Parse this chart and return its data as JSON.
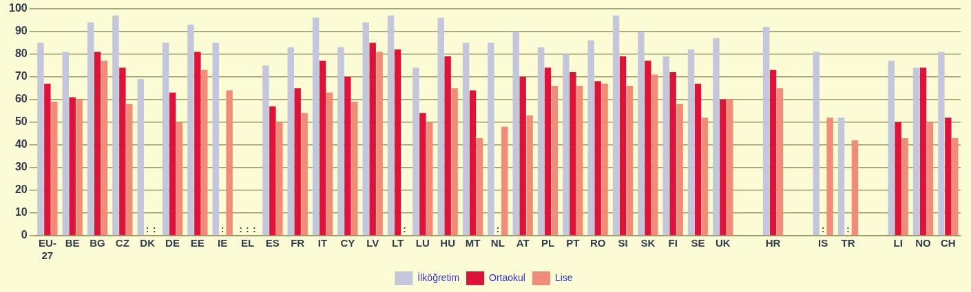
{
  "chart_data": {
    "type": "bar",
    "categories": [
      "EU-27",
      "BE",
      "BG",
      "CZ",
      "DK",
      "DE",
      "EE",
      "IE",
      "EL",
      "ES",
      "FR",
      "IT",
      "CY",
      "LV",
      "LT",
      "LU",
      "HU",
      "MT",
      "NL",
      "AT",
      "PL",
      "PT",
      "RO",
      "SI",
      "SK",
      "FI",
      "SE",
      "UK",
      null,
      "HR",
      null,
      "IS",
      "TR",
      null,
      "LI",
      "NO",
      "CH"
    ],
    "series": [
      {
        "name": "İlköğretim",
        "color": "#c4c6dc",
        "values": [
          85,
          81,
          94,
          97,
          69,
          85,
          93,
          85,
          null,
          75,
          83,
          96,
          83,
          94,
          97,
          74,
          96,
          85,
          85,
          90,
          83,
          80,
          86,
          97,
          90,
          79,
          82,
          87,
          null,
          92,
          null,
          81,
          52,
          null,
          77,
          74,
          81
        ],
        "value_labels": [
          null,
          null,
          null,
          null,
          null,
          null,
          null,
          null,
          ":",
          null,
          null,
          null,
          null,
          null,
          null,
          null,
          null,
          null,
          null,
          null,
          null,
          null,
          null,
          null,
          null,
          null,
          null,
          null,
          null,
          null,
          null,
          null,
          null,
          null,
          null,
          null,
          null
        ]
      },
      {
        "name": "Ortaokul",
        "color": "#dc143c",
        "values": [
          67,
          61,
          81,
          74,
          null,
          63,
          81,
          null,
          null,
          57,
          65,
          77,
          70,
          85,
          82,
          54,
          79,
          64,
          null,
          70,
          74,
          72,
          68,
          79,
          77,
          72,
          67,
          60,
          null,
          73,
          null,
          null,
          null,
          null,
          50,
          74,
          52
        ],
        "value_labels": [
          null,
          null,
          null,
          null,
          ":",
          null,
          null,
          ":",
          ":",
          null,
          null,
          null,
          null,
          null,
          null,
          null,
          null,
          null,
          ":",
          null,
          null,
          null,
          null,
          null,
          null,
          null,
          null,
          null,
          null,
          null,
          null,
          ":",
          ":",
          null,
          null,
          null,
          null
        ]
      },
      {
        "name": "Lise",
        "color": "#f08c78",
        "values": [
          59,
          60,
          77,
          58,
          null,
          50,
          73,
          64,
          null,
          50,
          54,
          63,
          59,
          81,
          null,
          50,
          65,
          43,
          48,
          53,
          66,
          66,
          67,
          66,
          71,
          58,
          52,
          60,
          null,
          65,
          null,
          52,
          42,
          null,
          43,
          50,
          43
        ],
        "value_labels": [
          null,
          null,
          null,
          null,
          ":",
          null,
          null,
          null,
          ":",
          null,
          null,
          null,
          null,
          null,
          ":",
          null,
          null,
          null,
          null,
          null,
          null,
          null,
          null,
          null,
          null,
          null,
          null,
          null,
          null,
          null,
          null,
          null,
          null,
          null,
          null,
          null,
          null
        ]
      }
    ],
    "ylim": [
      0,
      100
    ],
    "yticks": [
      0,
      10,
      20,
      30,
      40,
      50,
      60,
      70,
      80,
      90,
      100
    ],
    "grid": "y",
    "legend": "bottom"
  }
}
